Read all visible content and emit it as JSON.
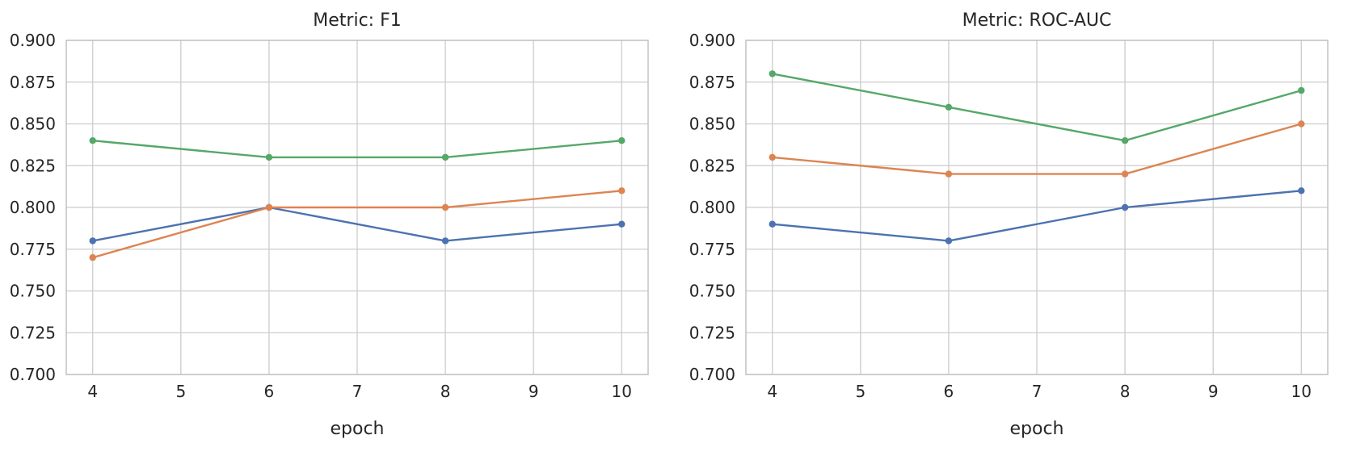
{
  "chart_data": [
    {
      "type": "line",
      "title": "Metric: F1",
      "xlabel": "epoch",
      "ylabel": "",
      "grid": true,
      "legend": "none",
      "x": [
        4,
        6,
        8,
        10
      ],
      "xticks": [
        4,
        5,
        6,
        7,
        8,
        9,
        10
      ],
      "yticks": [
        0.7,
        0.725,
        0.75,
        0.775,
        0.8,
        0.825,
        0.85,
        0.875,
        0.9
      ],
      "xlim": [
        3.7,
        10.3
      ],
      "ylim": [
        0.7,
        0.9
      ],
      "series": [
        {
          "name": "blue",
          "color": "#4C72B0",
          "values": [
            0.78,
            0.8,
            0.78,
            0.79
          ]
        },
        {
          "name": "orange",
          "color": "#DD8452",
          "values": [
            0.77,
            0.8,
            0.8,
            0.81
          ]
        },
        {
          "name": "green",
          "color": "#55A868",
          "values": [
            0.84,
            0.83,
            0.83,
            0.84
          ]
        }
      ]
    },
    {
      "type": "line",
      "title": "Metric: ROC-AUC",
      "xlabel": "epoch",
      "ylabel": "",
      "grid": true,
      "legend": "none",
      "x": [
        4,
        6,
        8,
        10
      ],
      "xticks": [
        4,
        5,
        6,
        7,
        8,
        9,
        10
      ],
      "yticks": [
        0.7,
        0.725,
        0.75,
        0.775,
        0.8,
        0.825,
        0.85,
        0.875,
        0.9
      ],
      "xlim": [
        3.7,
        10.3
      ],
      "ylim": [
        0.7,
        0.9
      ],
      "series": [
        {
          "name": "blue",
          "color": "#4C72B0",
          "values": [
            0.79,
            0.78,
            0.8,
            0.81
          ]
        },
        {
          "name": "orange",
          "color": "#DD8452",
          "values": [
            0.83,
            0.82,
            0.82,
            0.85
          ]
        },
        {
          "name": "green",
          "color": "#55A868",
          "values": [
            0.88,
            0.86,
            0.84,
            0.87
          ]
        }
      ]
    }
  ]
}
